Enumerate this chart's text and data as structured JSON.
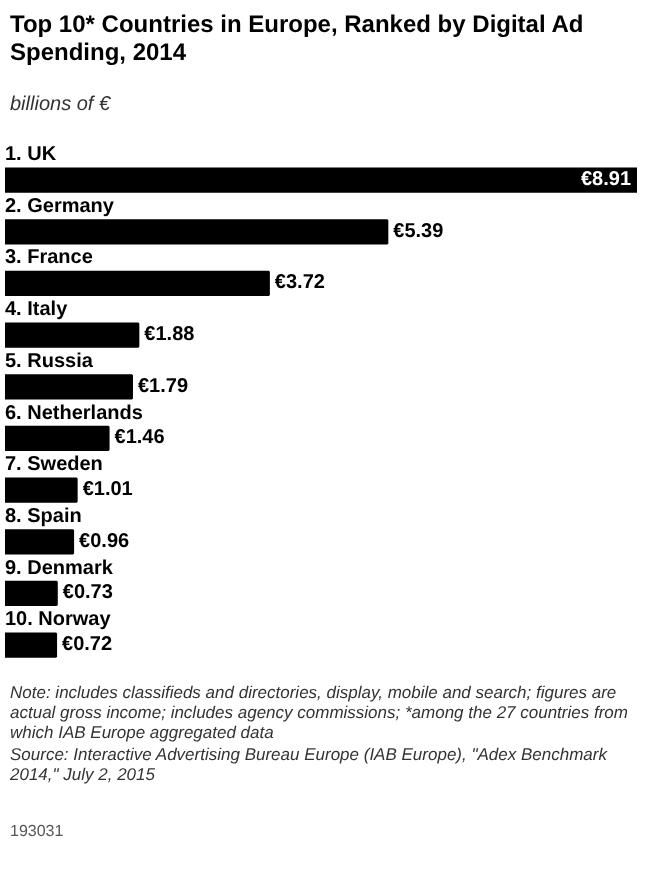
{
  "chart_data": {
    "type": "bar",
    "orientation": "horizontal",
    "title": "Top 10* Countries in Europe, Ranked by Digital Ad Spending, 2014",
    "subtitle": "billions of €",
    "categories": [
      "1. UK",
      "2. Germany",
      "3. France",
      "4. Italy",
      "5. Russia",
      "6. Netherlands",
      "7. Sweden",
      "8. Spain",
      "9. Denmark",
      "10. Norway"
    ],
    "values": [
      8.91,
      5.39,
      3.72,
      1.88,
      1.79,
      1.46,
      1.01,
      0.96,
      0.73,
      0.72
    ],
    "color": "#000000",
    "value_labels": [
      "€8.91",
      "€5.39",
      "€3.72",
      "€1.88",
      "€1.79",
      "€1.46",
      "€1.01",
      "€0.96",
      "€0.73",
      "€0.72"
    ],
    "annotations": [
      "Note: includes classifieds and directories, display, mobile and search; figures are actual gross income; includes agency commissions; *among the 27 countries from which IAB Europe aggregated data",
      "Source: Interactive Advertising Bureau Europe (IAB Europe), \"Adex Benchmark 2014,\" July 2, 2015",
      "193031"
    ]
  }
}
